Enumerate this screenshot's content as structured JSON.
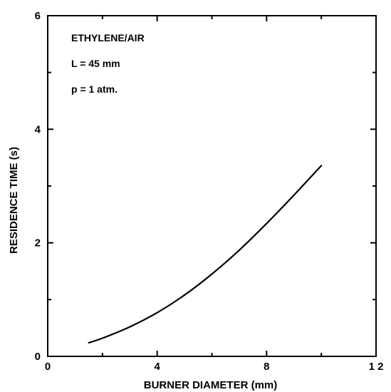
{
  "chart_data": {
    "type": "line",
    "xlabel": "BURNER DIAMETER (mm)",
    "ylabel": "RESIDENCE TIME (s)",
    "xlim": [
      0,
      12
    ],
    "ylim": [
      0,
      6
    ],
    "x_ticks": [
      0,
      4,
      8,
      12
    ],
    "x_tick_labels": [
      "0",
      "4",
      "8",
      "1 2"
    ],
    "y_ticks": [
      0,
      2,
      4,
      6
    ],
    "y_tick_labels": [
      "0",
      "2",
      "4",
      "6"
    ],
    "minor_ticks": true,
    "grid": false,
    "legend": false,
    "annotations": [
      "ETHYLENE/AIR",
      "L = 45 mm",
      "p = 1 atm."
    ],
    "series": [
      {
        "x": [
          1.5,
          2,
          3,
          4,
          5,
          6,
          7,
          8,
          9,
          10
        ],
        "values": [
          0.24,
          0.32,
          0.52,
          0.77,
          1.08,
          1.45,
          1.87,
          2.34,
          2.84,
          3.36
        ]
      }
    ]
  }
}
